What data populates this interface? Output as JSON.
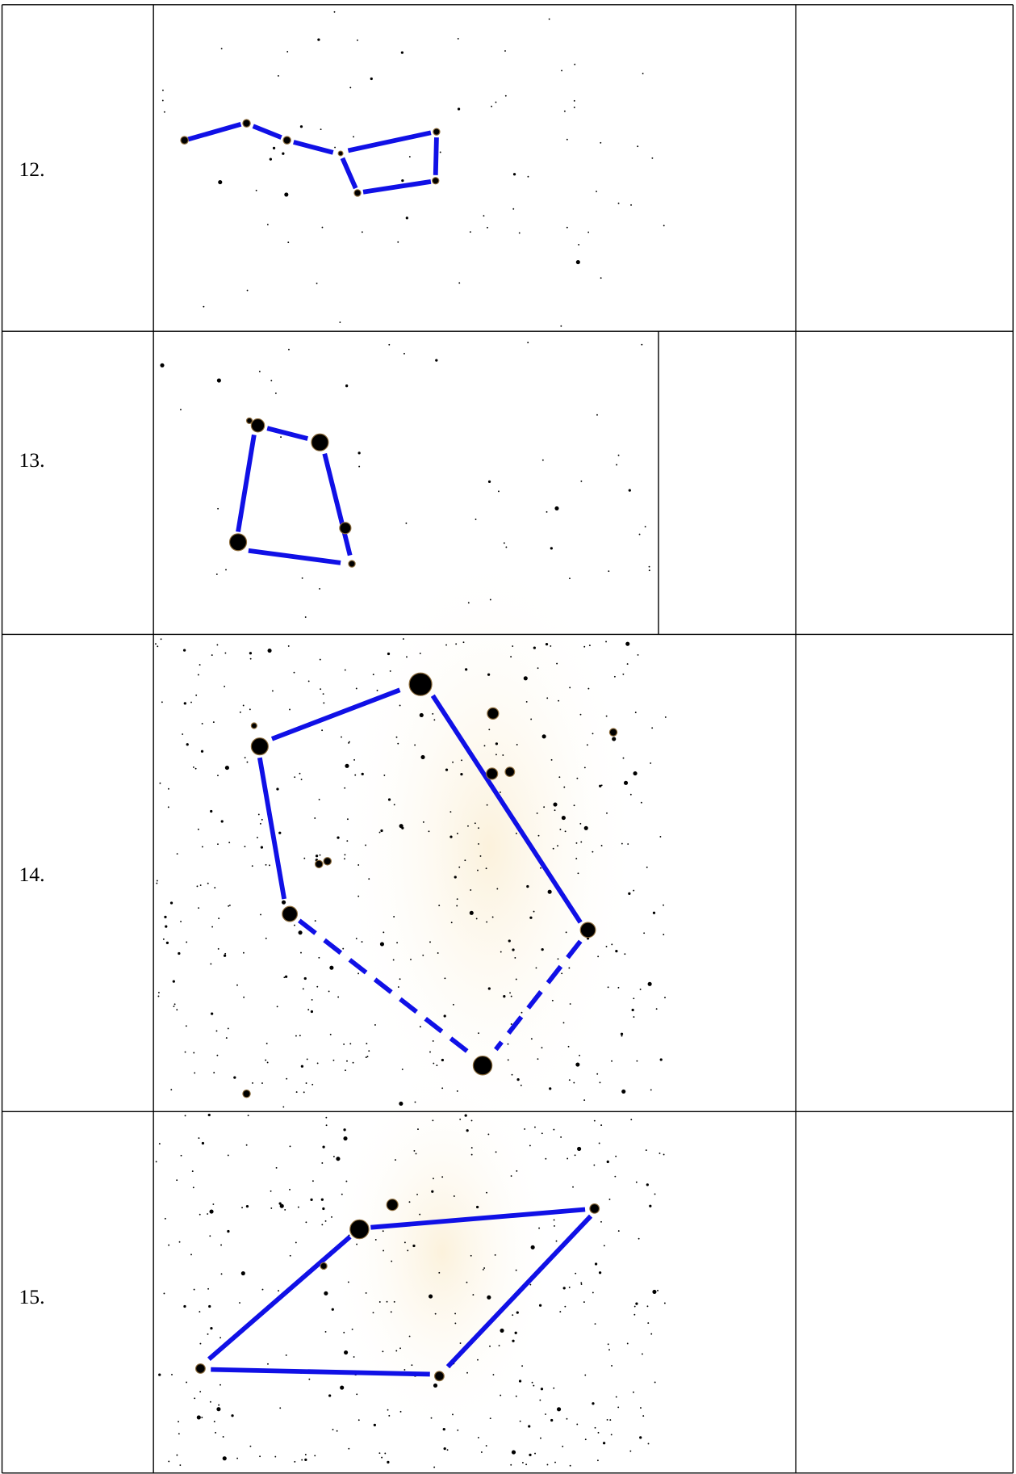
{
  "table": {
    "rows": [
      {
        "label": "12."
      },
      {
        "label": "13."
      },
      {
        "label": "14."
      },
      {
        "label": "15."
      }
    ]
  }
}
